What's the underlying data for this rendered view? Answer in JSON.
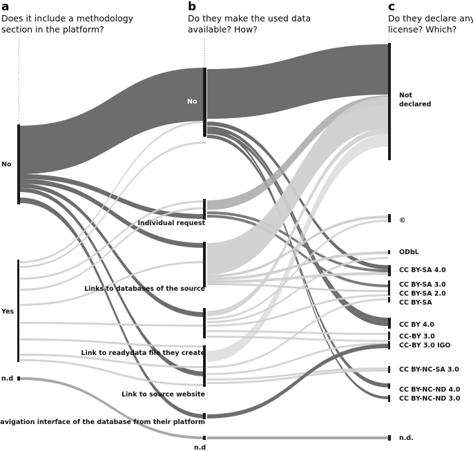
{
  "columns": [
    {
      "letter": "a",
      "question": [
        "Does it include a methodology",
        "section in the platform?"
      ]
    },
    {
      "letter": "b",
      "question": [
        "Do they make the used data",
        "available? How?"
      ]
    },
    {
      "letter": "c",
      "question": [
        "Do they declare any",
        "license? Which?"
      ]
    }
  ],
  "nodes_a": [
    "No",
    "Yes",
    "n.d"
  ],
  "nodes_b": [
    "No",
    "Individual request",
    "Links to databases of the source",
    "Link to readydata file they create",
    "Link to source website",
    "Navigation interface of the database from their platform",
    "n.d"
  ],
  "nodes_c": [
    "Not declared",
    "©",
    "ODbL",
    "CC BY-SA 4.0",
    "CC BY-SA 3.0",
    "CC BY-SA 2.0",
    "CC BY-SA",
    "CC BY 4.0",
    "CC-BY 3.0",
    "CC-BY 3.0 IGO",
    "CC BY-NC-SA 3.0",
    "CC BY-NC-ND 4.0",
    "CC BY-NC-ND 3.0",
    "n.d."
  ],
  "colors": {
    "node_bar": "#1a1a1a",
    "flow_no": "#6d6d6d",
    "flow_yes": "#cfcfcf",
    "flow_nd": "#a8a8a8",
    "guide": "#9a9a9a"
  }
}
